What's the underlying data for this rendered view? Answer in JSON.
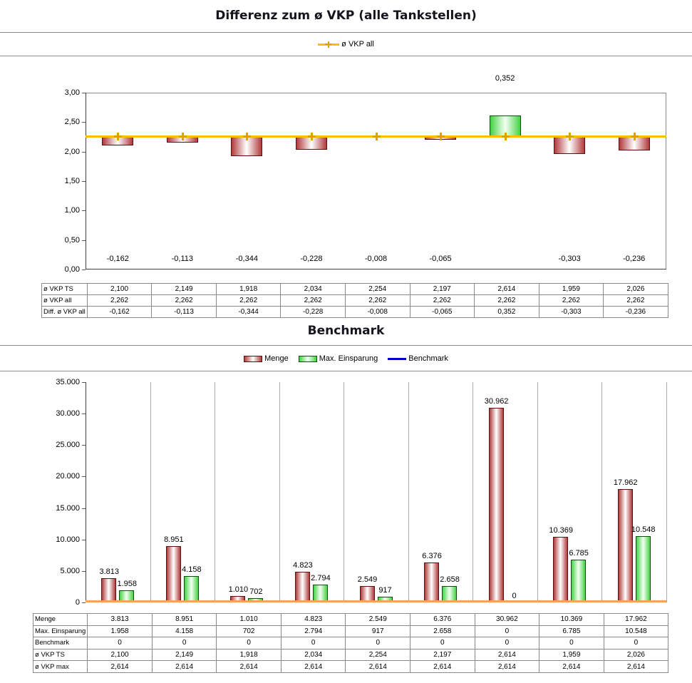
{
  "colors": {
    "vkp_all_line": "#FBBF00",
    "vkp_all_marker": "#E0A000",
    "menge_bar": "#B03A3A",
    "menge_bar_border": "#5C1010",
    "einsparung_bar": "#44D344",
    "einsparung_bar_border": "#0E4D0E",
    "benchmark_legend": "#0000CC",
    "benchmark_line": "#F4A460"
  },
  "chart_data": [
    {
      "id": "vkp-diff",
      "type": "bar",
      "title": "Differenz zum ø VKP (alle Tankstellen)",
      "legend": [
        "ø VKP all"
      ],
      "legend_position": "top",
      "grid": false,
      "n_categories": 9,
      "ylim": [
        0,
        3
      ],
      "ytick_values": [
        3,
        2.5,
        2,
        1.5,
        1,
        0.5,
        0
      ],
      "ytick_labels": [
        "3,00",
        "2,50",
        "2,00",
        "1,50",
        "1,00",
        "0,50",
        "0,00"
      ],
      "series": [
        {
          "name": "ø VKP TS",
          "values": [
            2.1,
            2.149,
            1.918,
            2.034,
            2.254,
            2.197,
            2.614,
            1.959,
            2.026
          ]
        },
        {
          "name": "ø VKP all",
          "values": [
            2.262,
            2.262,
            2.262,
            2.262,
            2.262,
            2.262,
            2.262,
            2.262,
            2.262
          ]
        },
        {
          "name": "Diff. ø VKP all",
          "values": [
            -0.162,
            -0.113,
            -0.344,
            -0.228,
            -0.008,
            -0.065,
            0.352,
            -0.303,
            -0.236
          ]
        }
      ],
      "diff_labels": [
        "-0,162",
        "-0,113",
        "-0,344",
        "-0,228",
        "-0,008",
        "-0,065",
        "0,352",
        "-0,303",
        "-0,236"
      ],
      "table": {
        "rows": [
          {
            "label": "ø VKP TS",
            "cells": [
              "2,100",
              "2,149",
              "1,918",
              "2,034",
              "2,254",
              "2,197",
              "2,614",
              "1,959",
              "2,026"
            ]
          },
          {
            "label": "ø VKP all",
            "cells": [
              "2,262",
              "2,262",
              "2,262",
              "2,262",
              "2,262",
              "2,262",
              "2,262",
              "2,262",
              "2,262"
            ]
          },
          {
            "label": "Diff. ø VKP all",
            "cells": [
              "-0,162",
              "-0,113",
              "-0,344",
              "-0,228",
              "-0,008",
              "-0,065",
              "0,352",
              "-0,303",
              "-0,236"
            ]
          }
        ]
      }
    },
    {
      "id": "benchmark",
      "type": "bar",
      "title": "Benchmark",
      "legend": [
        "Menge",
        "Max. Einsparung",
        "Benchmark"
      ],
      "legend_position": "top",
      "grid": "vertical",
      "n_categories": 9,
      "ylim": [
        0,
        35000
      ],
      "ytick_values": [
        35000,
        30000,
        25000,
        20000,
        15000,
        10000,
        5000,
        0
      ],
      "ytick_labels": [
        "35.000",
        "30.000",
        "25.000",
        "20.000",
        "15.000",
        "10.000",
        "5.000",
        "0"
      ],
      "series": [
        {
          "name": "Menge",
          "values": [
            3813,
            8951,
            1010,
            4823,
            2549,
            6376,
            30962,
            10369,
            17962
          ],
          "labels": [
            "3.813",
            "8.951",
            "1.010",
            "4.823",
            "2.549",
            "6.376",
            "30.962",
            "10.369",
            "17.962"
          ]
        },
        {
          "name": "Max. Einsparung",
          "values": [
            1958,
            4158,
            702,
            2794,
            917,
            2658,
            0,
            6785,
            10548
          ],
          "labels": [
            "1.958",
            "4.158",
            "702",
            "2.794",
            "917",
            "2.658",
            "0",
            "6.785",
            "10.548"
          ]
        },
        {
          "name": "Benchmark",
          "values": [
            0,
            0,
            0,
            0,
            0,
            0,
            0,
            0,
            0
          ]
        }
      ],
      "table": {
        "rows": [
          {
            "label": "Menge",
            "cells": [
              "3.813",
              "8.951",
              "1.010",
              "4.823",
              "2.549",
              "6.376",
              "30.962",
              "10.369",
              "17.962"
            ]
          },
          {
            "label": "Max. Einsparung",
            "cells": [
              "1.958",
              "4.158",
              "702",
              "2.794",
              "917",
              "2.658",
              "0",
              "6.785",
              "10.548"
            ]
          },
          {
            "label": "Benchmark",
            "cells": [
              "0",
              "0",
              "0",
              "0",
              "0",
              "0",
              "0",
              "0",
              "0"
            ]
          },
          {
            "label": "ø VKP TS",
            "cells": [
              "2,100",
              "2,149",
              "1,918",
              "2,034",
              "2,254",
              "2,197",
              "2,614",
              "1,959",
              "2,026"
            ]
          },
          {
            "label": "ø VKP max",
            "cells": [
              "2,614",
              "2,614",
              "2,614",
              "2,614",
              "2,614",
              "2,614",
              "2,614",
              "2,614",
              "2,614"
            ]
          }
        ]
      }
    }
  ]
}
